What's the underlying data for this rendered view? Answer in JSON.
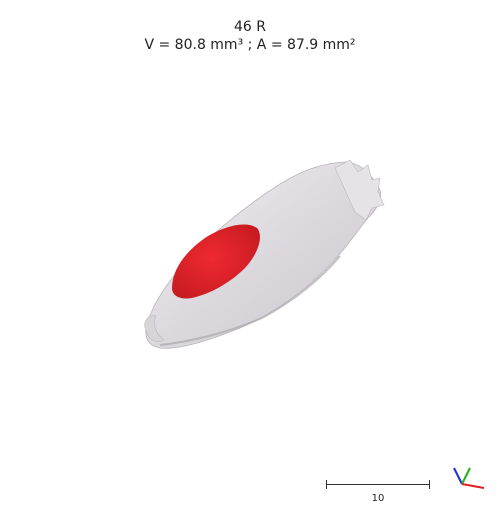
{
  "header": {
    "title": "46 R",
    "measurements": "V = 80.8 mm³ ; A = 87.9 mm²"
  },
  "scale_bar": {
    "label": "10"
  },
  "colors": {
    "specimen": "#e8e6ea",
    "highlight": "#e2222a",
    "axis_x": "#e02020",
    "axis_y": "#20b020",
    "axis_z": "#2030d0"
  },
  "icons": {
    "orientation": "xyz-axes-icon"
  }
}
